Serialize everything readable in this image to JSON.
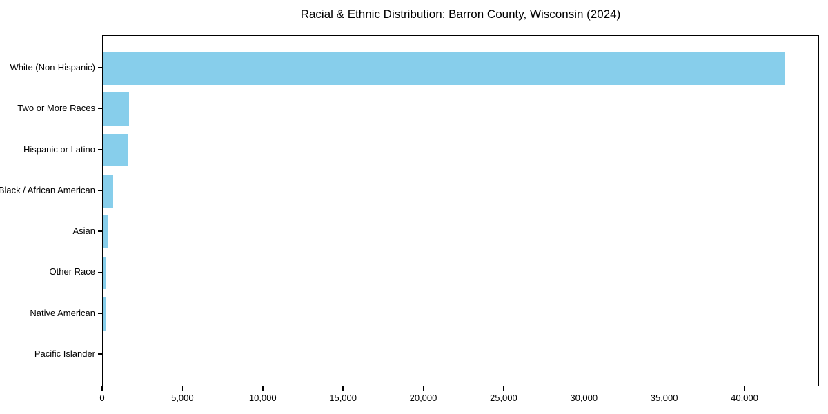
{
  "chart_data": {
    "type": "bar",
    "orientation": "horizontal",
    "title": "Racial & Ethnic Distribution: Barron County, Wisconsin (2024)",
    "categories": [
      "White (Non-Hispanic)",
      "Two or More Races",
      "Hispanic or Latino",
      "Black / African American",
      "Asian",
      "Other Race",
      "Native American",
      "Pacific Islander"
    ],
    "values": [
      42450,
      1640,
      1570,
      630,
      340,
      210,
      180,
      20
    ],
    "bar_color": "#87CEEB",
    "axis_color": "#000000",
    "text_color": "#000000",
    "xlim": [
      0,
      44640
    ],
    "xticks": [
      0,
      5000,
      10000,
      15000,
      20000,
      25000,
      30000,
      35000,
      40000
    ],
    "xtick_labels": [
      "0",
      "5,000",
      "10,000",
      "15,000",
      "20,000",
      "25,000",
      "30,000",
      "35,000",
      "40,000"
    ],
    "grid": "off",
    "legend": "none",
    "xlabel": "",
    "ylabel": ""
  }
}
